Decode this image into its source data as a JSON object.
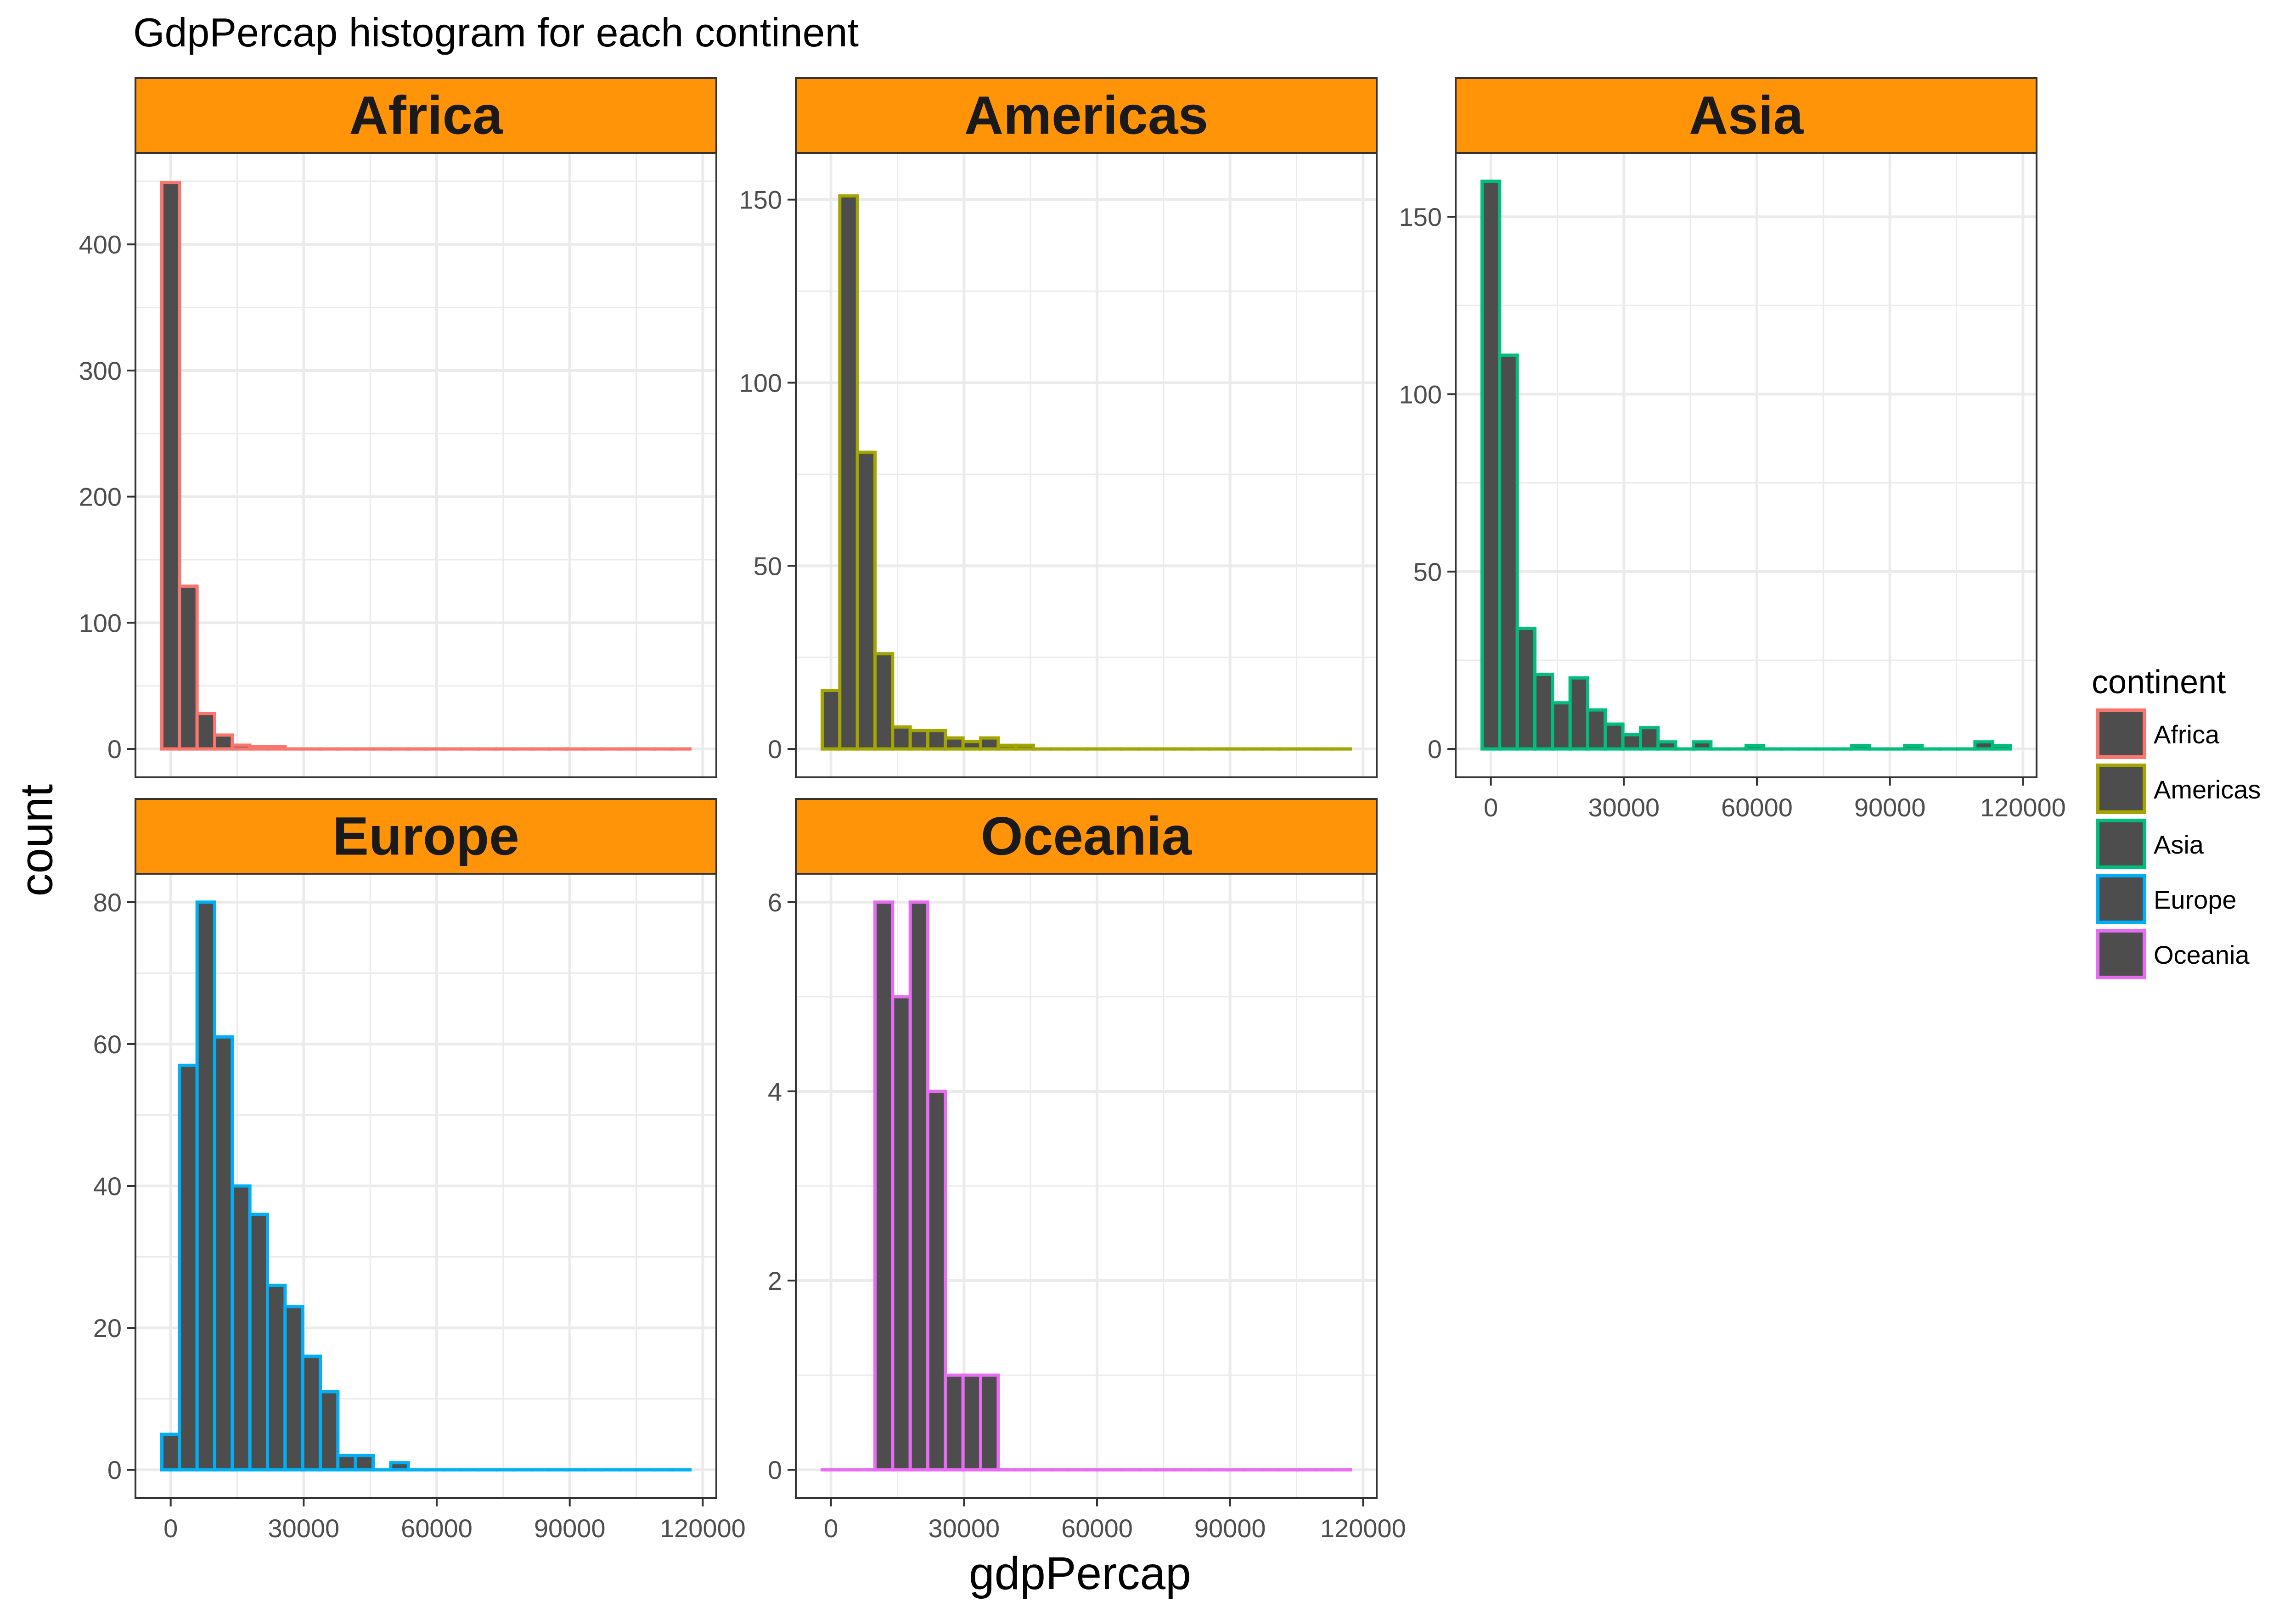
{
  "title": "GdpPercap histogram for each continent",
  "xlabel": "gdpPercap",
  "ylabel": "count",
  "legend": {
    "title": "continent",
    "position": "right",
    "items": [
      {
        "label": "Africa",
        "color": "#F8766D"
      },
      {
        "label": "Americas",
        "color": "#A3A500"
      },
      {
        "label": "Asia",
        "color": "#00BF7D"
      },
      {
        "label": "Europe",
        "color": "#00B0F6"
      },
      {
        "label": "Oceania",
        "color": "#E76BF3"
      }
    ]
  },
  "colors": {
    "bar_fill": "#4D4D4D",
    "strip_fill": "#FF9408",
    "grid": "#EBEBEB"
  },
  "chart_data": {
    "type": "bar",
    "title": "GdpPercap histogram for each continent",
    "xlabel": "gdpPercap",
    "ylabel": "count",
    "grid": true,
    "legend_placement": "right",
    "x_ticks": [
      0,
      30000,
      60000,
      90000,
      120000
    ],
    "x_tick_labels": [
      "0",
      "30000",
      "60000",
      "90000",
      "120000"
    ],
    "bin_start": -1985,
    "bin_width": 3970,
    "bin_count": 30,
    "xlim": [
      -1985,
      117115
    ],
    "panels": [
      {
        "name": "Africa",
        "color": "#F8766D",
        "ylim": [
          0,
          450
        ],
        "y_ticks": [
          0,
          100,
          200,
          300,
          400
        ],
        "y_tick_labels": [
          "0",
          "100",
          "200",
          "300",
          "400"
        ],
        "values": [
          449,
          129,
          28,
          11,
          3,
          2,
          2,
          0,
          0,
          0,
          0,
          0,
          0,
          0,
          0,
          0,
          0,
          0,
          0,
          0,
          0,
          0,
          0,
          0,
          0,
          0,
          0,
          0,
          0,
          0
        ]
      },
      {
        "name": "Americas",
        "color": "#A3A500",
        "ylim": [
          0,
          155
        ],
        "y_ticks": [
          0,
          50,
          100,
          150
        ],
        "y_tick_labels": [
          "0",
          "50",
          "100",
          "150"
        ],
        "values": [
          16,
          151,
          81,
          26,
          6,
          5,
          5,
          3,
          2,
          3,
          1,
          1,
          0,
          0,
          0,
          0,
          0,
          0,
          0,
          0,
          0,
          0,
          0,
          0,
          0,
          0,
          0,
          0,
          0,
          0
        ]
      },
      {
        "name": "Asia",
        "color": "#00BF7D",
        "ylim": [
          0,
          160
        ],
        "y_ticks": [
          0,
          50,
          100,
          150
        ],
        "y_tick_labels": [
          "0",
          "50",
          "100",
          "150"
        ],
        "values": [
          160,
          111,
          34,
          21,
          13,
          20,
          11,
          7,
          4,
          6,
          2,
          0,
          2,
          0,
          0,
          1,
          0,
          0,
          0,
          0,
          0,
          1,
          0,
          0,
          1,
          0,
          0,
          0,
          2,
          1
        ]
      },
      {
        "name": "Europe",
        "color": "#00B0F6",
        "ylim": [
          0,
          80
        ],
        "y_ticks": [
          0,
          20,
          40,
          60,
          80
        ],
        "y_tick_labels": [
          "0",
          "20",
          "40",
          "60",
          "80"
        ],
        "values": [
          5,
          57,
          80,
          61,
          40,
          36,
          26,
          23,
          16,
          11,
          2,
          2,
          0,
          1,
          0,
          0,
          0,
          0,
          0,
          0,
          0,
          0,
          0,
          0,
          0,
          0,
          0,
          0,
          0,
          0
        ]
      },
      {
        "name": "Oceania",
        "color": "#E76BF3",
        "ylim": [
          0,
          6
        ],
        "y_ticks": [
          0,
          2,
          4,
          6
        ],
        "y_tick_labels": [
          "0",
          "2",
          "4",
          "6"
        ],
        "values": [
          0,
          0,
          0,
          6,
          5,
          6,
          4,
          1,
          1,
          1,
          0,
          0,
          0,
          0,
          0,
          0,
          0,
          0,
          0,
          0,
          0,
          0,
          0,
          0,
          0,
          0,
          0,
          0,
          0,
          0
        ]
      }
    ]
  }
}
